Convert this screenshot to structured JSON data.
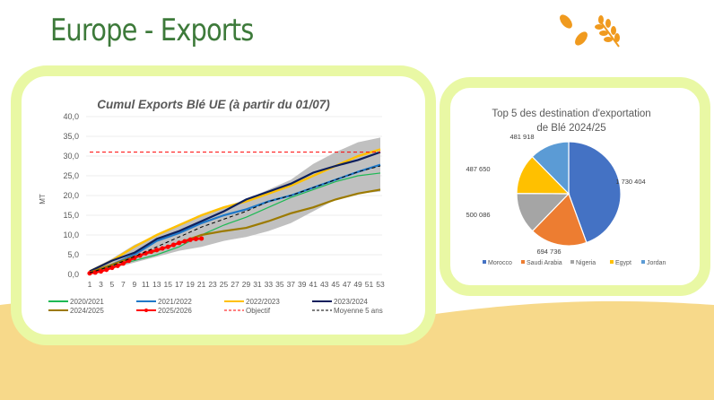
{
  "header": {
    "title": "Europe - Exports",
    "logo_icon": "wheat-leaves-icon"
  },
  "colors": {
    "panel_border": "#e9f8a4",
    "ground": "#f7d98a",
    "title": "#3d7a3a"
  },
  "chart_data": [
    {
      "type": "line",
      "title": "Cumul Exports Blé UE (à partir du 01/07)",
      "ylabel": "MT",
      "xlabel": "",
      "ylim": [
        0,
        40
      ],
      "yticks": [
        "0,0",
        "5,0",
        "10,0",
        "15,0",
        "20,0",
        "25,0",
        "30,0",
        "35,0",
        "40,0"
      ],
      "xticks": [
        1,
        3,
        5,
        7,
        9,
        11,
        13,
        15,
        17,
        19,
        21,
        23,
        25,
        27,
        29,
        31,
        33,
        35,
        37,
        39,
        41,
        43,
        45,
        47,
        49,
        51,
        53
      ],
      "grid": true,
      "legend": "bottom",
      "band": {
        "x": [
          1,
          5,
          9,
          13,
          17,
          21,
          25,
          29,
          33,
          37,
          41,
          45,
          49,
          53
        ],
        "lower": [
          0.3,
          1.5,
          3,
          4.5,
          6,
          7,
          8.5,
          9.5,
          11,
          13,
          16,
          19,
          20.5,
          21
        ],
        "upper": [
          1,
          4,
          7.5,
          10,
          12.5,
          15,
          17,
          19,
          21.5,
          24,
          28,
          31,
          33.5,
          34.7
        ],
        "color": "#c0c0c0"
      },
      "series": [
        {
          "name": "2020/2021",
          "color": "#1db954",
          "width": 1.2,
          "x": [
            1,
            5,
            9,
            13,
            17,
            21,
            25,
            29,
            33,
            37,
            41,
            45,
            49,
            53
          ],
          "values": [
            0.5,
            2,
            3.5,
            5,
            7,
            10,
            12.5,
            14.5,
            17,
            19.5,
            21.5,
            23.5,
            25,
            25.7
          ]
        },
        {
          "name": "2021/2022",
          "color": "#1f78c8",
          "width": 2.2,
          "x": [
            1,
            5,
            9,
            13,
            17,
            21,
            25,
            29,
            33,
            37,
            41,
            45,
            49,
            53
          ],
          "values": [
            0.5,
            2.5,
            5,
            8.5,
            10.5,
            13,
            15,
            16.5,
            18.5,
            20,
            22,
            24,
            26,
            27.8
          ]
        },
        {
          "name": "2022/2023",
          "color": "#ffc000",
          "width": 2.5,
          "x": [
            1,
            5,
            9,
            13,
            17,
            21,
            25,
            29,
            33,
            37,
            41,
            45,
            49,
            53
          ],
          "values": [
            0.8,
            3.5,
            7,
            10,
            12.5,
            15,
            17,
            18.5,
            20.5,
            22.5,
            25,
            27.5,
            30,
            31.7
          ]
        },
        {
          "name": "2023/2024",
          "color": "#0d1f5c",
          "width": 2.2,
          "x": [
            1,
            5,
            9,
            13,
            17,
            21,
            25,
            29,
            33,
            37,
            41,
            45,
            49,
            53
          ],
          "values": [
            0.8,
            3.5,
            5.5,
            9,
            11,
            13.5,
            16,
            19,
            21,
            23,
            25.8,
            27.5,
            29,
            31
          ]
        },
        {
          "name": "2024/2025",
          "color": "#9c7a00",
          "width": 2.2,
          "x": [
            1,
            5,
            9,
            13,
            17,
            21,
            25,
            29,
            33,
            37,
            41,
            45,
            49,
            53
          ],
          "values": [
            0.5,
            2.5,
            4.5,
            6,
            8,
            10,
            11,
            11.8,
            13.5,
            15.5,
            17,
            19,
            20.5,
            21.5
          ]
        },
        {
          "name": "2025/2026",
          "color": "#ff0000",
          "width": 2.5,
          "markers": true,
          "x": [
            1,
            2,
            3,
            4,
            5,
            6,
            7,
            8,
            9,
            10,
            11,
            12,
            13,
            14,
            15,
            16,
            17,
            18,
            19,
            20,
            21
          ],
          "values": [
            0.3,
            0.5,
            0.8,
            1.2,
            1.7,
            2.2,
            2.8,
            3.5,
            4.2,
            4.8,
            5.4,
            5.8,
            6.2,
            6.6,
            7,
            7.5,
            8,
            8.4,
            8.8,
            9,
            9.1
          ]
        },
        {
          "name": "Objectif",
          "color": "#ff0000",
          "width": 1,
          "dash": true,
          "x": [
            1,
            53
          ],
          "values": [
            31,
            31
          ]
        },
        {
          "name": "Moyenne 5 ans",
          "color": "#000000",
          "width": 1,
          "dash": true,
          "x": [
            1,
            5,
            9,
            13,
            17,
            21,
            25,
            29,
            33,
            37,
            41,
            45,
            49,
            53
          ],
          "values": [
            0.4,
            2.2,
            4.5,
            7,
            9.5,
            12,
            14,
            16,
            18.5,
            20,
            22,
            24,
            26,
            27.5
          ]
        }
      ]
    },
    {
      "type": "pie",
      "title": [
        "Top 5 des destination d'exportation",
        "de Blé 2024/25"
      ],
      "legend": "bottom",
      "categories": [
        "Morocco",
        "Saudi Arabia",
        "Nigeria",
        "Egypt",
        "Jordan"
      ],
      "values": [
        1730404,
        694736,
        500086,
        487650,
        481918
      ],
      "labels": [
        "1 730 404",
        "694 736",
        "500 086",
        "487 650",
        "481 918"
      ],
      "colors": [
        "#4472c4",
        "#ed7d31",
        "#a5a5a5",
        "#ffc000",
        "#5b9bd5"
      ]
    }
  ]
}
